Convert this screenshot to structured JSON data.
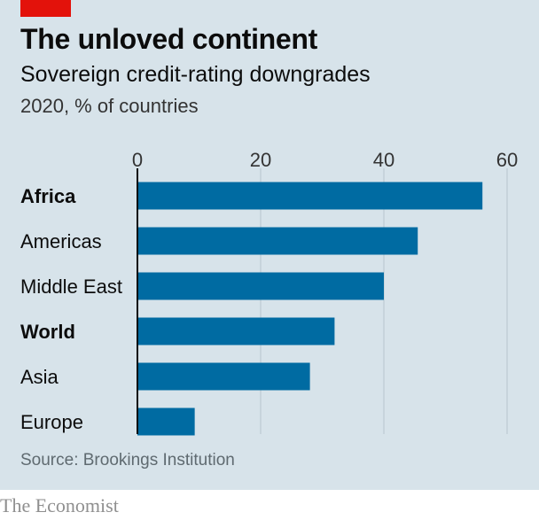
{
  "header": {
    "title": "The unloved continent",
    "subtitle": "Sovereign credit-rating downgrades",
    "units": "2020, % of countries"
  },
  "footer": {
    "source": "Source: Brookings Institution",
    "brand": "The Economist"
  },
  "colors": {
    "bar": "#006ba2",
    "background": "#d7e3ea",
    "gridline": "#b7c6ce",
    "accent": "#e3120b"
  },
  "chart_data": {
    "type": "bar",
    "orientation": "horizontal",
    "categories": [
      "Africa",
      "Americas",
      "Middle East",
      "World",
      "Asia",
      "Europe"
    ],
    "values": [
      56,
      45.5,
      40,
      32,
      28,
      9.3
    ],
    "emphasized": [
      "Africa",
      "World"
    ],
    "xlim": [
      0,
      60
    ],
    "xticks": [
      0,
      20,
      40,
      60
    ],
    "grid": true,
    "xaxis_position": "top"
  }
}
